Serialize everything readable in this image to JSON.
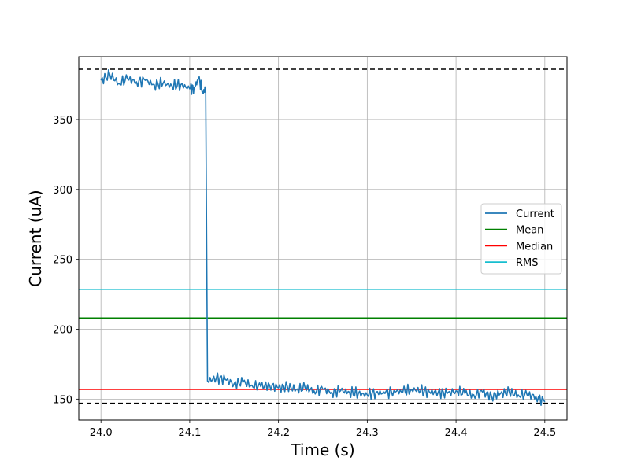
{
  "chart_data": {
    "type": "line",
    "xlabel": "Time (s)",
    "ylabel": "Current (uA)",
    "xlim": [
      23.975,
      24.525
    ],
    "ylim": [
      135,
      395
    ],
    "x_ticks": [
      24.0,
      24.1,
      24.2,
      24.3,
      24.4,
      24.5
    ],
    "x_tick_labels": [
      "24.0",
      "24.1",
      "24.2",
      "24.3",
      "24.4",
      "24.5"
    ],
    "y_ticks": [
      150,
      200,
      250,
      300,
      350
    ],
    "y_tick_labels": [
      "150",
      "200",
      "250",
      "300",
      "350"
    ],
    "grid": true,
    "legend_position": "center-right",
    "series": [
      {
        "name": "Current",
        "color": "#1f77b4",
        "x": [
          24.0,
          24.01,
          24.02,
          24.03,
          24.04,
          24.05,
          24.06,
          24.07,
          24.08,
          24.09,
          24.1,
          24.105,
          24.11,
          24.115,
          24.118,
          24.12,
          24.13,
          24.14,
          24.15,
          24.16,
          24.17,
          24.18,
          24.19,
          24.2,
          24.21,
          24.22,
          24.23,
          24.24,
          24.25,
          24.26,
          24.27,
          24.28,
          24.29,
          24.3,
          24.31,
          24.32,
          24.33,
          24.34,
          24.35,
          24.36,
          24.37,
          24.38,
          24.39,
          24.4,
          24.41,
          24.42,
          24.43,
          24.44,
          24.45,
          24.46,
          24.47,
          24.48,
          24.49,
          24.5
        ],
        "y": [
          378,
          382,
          376,
          379,
          377,
          378,
          375,
          376,
          374,
          375,
          372,
          373,
          379,
          370,
          372,
          163,
          165,
          164,
          161,
          162,
          160,
          159,
          160,
          158,
          159,
          157,
          158,
          156,
          157,
          155,
          156,
          155,
          154,
          153,
          155,
          154,
          156,
          155,
          157,
          156,
          155,
          155,
          154,
          156,
          154,
          153,
          155,
          152,
          154,
          155,
          153,
          153,
          152,
          148
        ]
      }
    ],
    "reference_lines": [
      {
        "name": "Mean",
        "value": 208,
        "color": "#008000"
      },
      {
        "name": "Median",
        "value": 157,
        "color": "#ff0000"
      },
      {
        "name": "RMS",
        "value": 228.5,
        "color": "#17becf"
      }
    ],
    "bound_lines": [
      {
        "value": 386,
        "color": "#000000",
        "style": "dashed"
      },
      {
        "value": 147,
        "color": "#000000",
        "style": "dashed"
      }
    ]
  }
}
